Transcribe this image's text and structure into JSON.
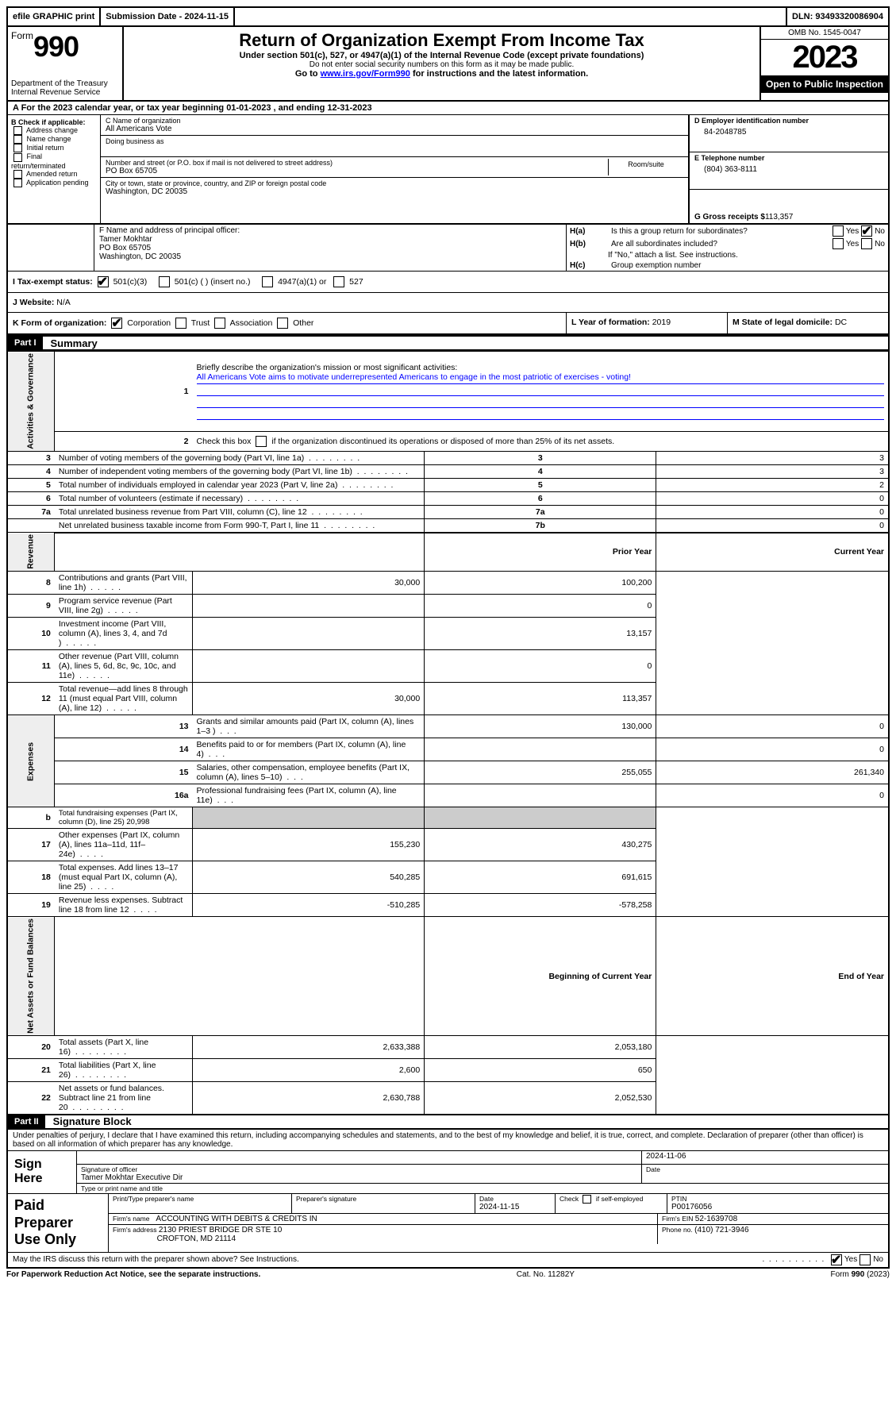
{
  "topbar": {
    "efile": "efile GRAPHIC print",
    "submission_label": "Submission Date - 2024-11-15",
    "dln_label": "DLN: 93493320086904"
  },
  "header": {
    "form_word": "Form",
    "form_no": "990",
    "dept": "Department of the Treasury",
    "irs": "Internal Revenue Service",
    "title": "Return of Organization Exempt From Income Tax",
    "sub": "Under section 501(c), 527, or 4947(a)(1) of the Internal Revenue Code (except private foundations)",
    "sub2": "Do not enter social security numbers on this form as it may be made public.",
    "goto_pre": "Go to ",
    "goto_link": "www.irs.gov/Form990",
    "goto_post": " for instructions and the latest information.",
    "omb": "OMB No. 1545-0047",
    "year": "2023",
    "open": "Open to Public Inspection"
  },
  "row_a": "A  For the 2023 calendar year, or tax year beginning 01-01-2023   , and ending 12-31-2023",
  "col_b": {
    "title": "B Check if applicable:",
    "opts": [
      "Address change",
      "Name change",
      "Initial return",
      "Final return/terminated",
      "Amended return",
      "Application pending"
    ]
  },
  "col_c": {
    "name_lbl": "C Name of organization",
    "name": "All Americans Vote",
    "dba_lbl": "Doing business as",
    "dba": "",
    "addr_lbl": "Number and street (or P.O. box if mail is not delivered to street address)",
    "addr": "PO Box 65705",
    "room_lbl": "Room/suite",
    "room": "",
    "city_lbl": "City or town, state or province, country, and ZIP or foreign postal code",
    "city": "Washington, DC  20035"
  },
  "col_d": {
    "ein_lbl": "D Employer identification number",
    "ein": "84-2048785",
    "tel_lbl": "E Telephone number",
    "tel": "(804) 363-8111",
    "gross_lbl": "G Gross receipts $ ",
    "gross": "113,357"
  },
  "sec_f": {
    "lbl": "F  Name and address of principal officer:",
    "name": "Tamer Mokhtar",
    "addr1": "PO Box 65705",
    "addr2": "Washington, DC  20035"
  },
  "sec_h": {
    "ha": "H(a)  Is this a group return for subordinates?",
    "hb": "H(b)  Are all subordinates included?",
    "hb_note": "If \"No,\" attach a list. See instructions.",
    "hc": "H(c)  Group exemption number",
    "yes": "Yes",
    "no": "No"
  },
  "row_i": {
    "lbl": "I   Tax-exempt status:",
    "o1": "501(c)(3)",
    "o2": "501(c) (  ) (insert no.)",
    "o3": "4947(a)(1) or",
    "o4": "527"
  },
  "row_j": {
    "lbl": "J   Website: ",
    "val": "   N/A"
  },
  "row_k": {
    "lbl": "K Form of organization:",
    "o1": "Corporation",
    "o2": "Trust",
    "o3": "Association",
    "o4": "Other"
  },
  "row_l": {
    "lbl": "L Year of formation: ",
    "val": "2019"
  },
  "row_m": {
    "lbl": "M State of legal domicile: ",
    "val": "DC"
  },
  "part1": {
    "code": "Part I",
    "title": "Summary"
  },
  "summary": {
    "vtabs": [
      "Activities & Governance",
      "Revenue",
      "Expenses",
      "Net Assets or Fund Balances"
    ],
    "l1_lbl": "Briefly describe the organization's mission or most significant activities:",
    "l1_text": "All Americans Vote aims to motivate underrepresented Americans to engage in the most patriotic of exercises - voting!",
    "l2": "Check this box        if the organization discontinued its operations or disposed of more than 25% of its net assets.",
    "rows_gov": [
      {
        "n": "3",
        "d": "Number of voting members of the governing body (Part VI, line 1a)",
        "ln": "3",
        "v": "3"
      },
      {
        "n": "4",
        "d": "Number of independent voting members of the governing body (Part VI, line 1b)",
        "ln": "4",
        "v": "3"
      },
      {
        "n": "5",
        "d": "Total number of individuals employed in calendar year 2023 (Part V, line 2a)",
        "ln": "5",
        "v": "2"
      },
      {
        "n": "6",
        "d": "Total number of volunteers (estimate if necessary)",
        "ln": "6",
        "v": "0"
      },
      {
        "n": "7a",
        "d": "Total unrelated business revenue from Part VIII, column (C), line 12",
        "ln": "7a",
        "v": "0"
      },
      {
        "n": "",
        "d": "Net unrelated business taxable income from Form 990-T, Part I, line 11",
        "ln": "7b",
        "v": "0"
      }
    ],
    "hdr_prior": "Prior Year",
    "hdr_curr": "Current Year",
    "rows_rev": [
      {
        "n": "8",
        "d": "Contributions and grants (Part VIII, line 1h)",
        "p": "30,000",
        "c": "100,200"
      },
      {
        "n": "9",
        "d": "Program service revenue (Part VIII, line 2g)",
        "p": "",
        "c": "0"
      },
      {
        "n": "10",
        "d": "Investment income (Part VIII, column (A), lines 3, 4, and 7d )",
        "p": "",
        "c": "13,157"
      },
      {
        "n": "11",
        "d": "Other revenue (Part VIII, column (A), lines 5, 6d, 8c, 9c, 10c, and 11e)",
        "p": "",
        "c": "0"
      },
      {
        "n": "12",
        "d": "Total revenue—add lines 8 through 11 (must equal Part VIII, column (A), line 12)",
        "p": "30,000",
        "c": "113,357"
      }
    ],
    "rows_exp": [
      {
        "n": "13",
        "d": "Grants and similar amounts paid (Part IX, column (A), lines 1–3 )",
        "p": "130,000",
        "c": "0"
      },
      {
        "n": "14",
        "d": "Benefits paid to or for members (Part IX, column (A), line 4)",
        "p": "",
        "c": "0"
      },
      {
        "n": "15",
        "d": "Salaries, other compensation, employee benefits (Part IX, column (A), lines 5–10)",
        "p": "255,055",
        "c": "261,340"
      },
      {
        "n": "16a",
        "d": "Professional fundraising fees (Part IX, column (A), line 11e)",
        "p": "",
        "c": "0"
      }
    ],
    "l16b_n": "b",
    "l16b": "Total fundraising expenses (Part IX, column (D), line 25) 20,998",
    "rows_exp2": [
      {
        "n": "17",
        "d": "Other expenses (Part IX, column (A), lines 11a–11d, 11f–24e)",
        "p": "155,230",
        "c": "430,275"
      },
      {
        "n": "18",
        "d": "Total expenses. Add lines 13–17 (must equal Part IX, column (A), line 25)",
        "p": "540,285",
        "c": "691,615"
      },
      {
        "n": "19",
        "d": "Revenue less expenses. Subtract line 18 from line 12",
        "p": "-510,285",
        "c": "-578,258"
      }
    ],
    "hdr_beg": "Beginning of Current Year",
    "hdr_end": "End of Year",
    "rows_net": [
      {
        "n": "20",
        "d": "Total assets (Part X, line 16)",
        "p": "2,633,388",
        "c": "2,053,180"
      },
      {
        "n": "21",
        "d": "Total liabilities (Part X, line 26)",
        "p": "2,600",
        "c": "650"
      },
      {
        "n": "22",
        "d": "Net assets or fund balances. Subtract line 21 from line 20",
        "p": "2,630,788",
        "c": "2,052,530"
      }
    ]
  },
  "part2": {
    "code": "Part II",
    "title": "Signature Block"
  },
  "perjury": "Under penalties of perjury, I declare that I have examined this return, including accompanying schedules and statements, and to the best of my knowledge and belief, it is true, correct, and complete. Declaration of preparer (other than officer) is based on all information of which preparer has any knowledge.",
  "sign": {
    "here": "Sign Here",
    "sig_lbl": "Signature of officer",
    "officer": "Tamer Mokhtar  Executive Dir",
    "type_lbl": "Type or print name and title",
    "date_lbl": "Date",
    "date": "2024-11-06"
  },
  "paid": {
    "title": "Paid Preparer Use Only",
    "name_lbl": "Print/Type preparer's name",
    "sig_lbl": "Preparer's signature",
    "date_lbl": "Date",
    "date": "2024-11-15",
    "self_lbl": "Check       if self-employed",
    "ptin_lbl": "PTIN",
    "ptin": "P00176056",
    "firm_name_lbl": "Firm's name   ",
    "firm_name": "ACCOUNTING WITH DEBITS & CREDITS IN",
    "firm_ein_lbl": "Firm's EIN  ",
    "firm_ein": "52-1639708",
    "firm_addr_lbl": "Firm's address ",
    "firm_addr1": "2130 PRIEST BRIDGE DR STE 10",
    "firm_addr2": "CROFTON, MD  21114",
    "phone_lbl": "Phone no. ",
    "phone": "(410) 721-3946"
  },
  "discuss": "May the IRS discuss this return with the preparer shown above? See Instructions.",
  "footer": {
    "left": "For Paperwork Reduction Act Notice, see the separate instructions.",
    "mid": "Cat. No. 11282Y",
    "right": "Form 990 (2023)"
  }
}
